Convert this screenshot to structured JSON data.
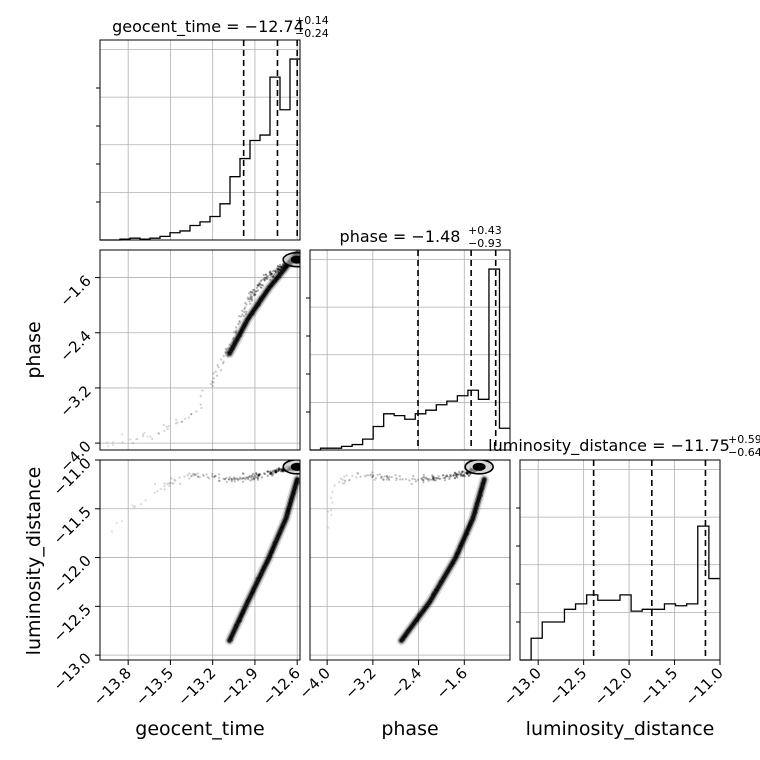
{
  "chart_data": {
    "type": "corner",
    "parameters": [
      "geocent_time",
      "phase",
      "luminosity_distance"
    ],
    "panels": {
      "geocent_time": {
        "title_value": "−12.74",
        "title_plus": "+0.14",
        "title_minus": "−0.24",
        "xlim": [
          -14.0,
          -12.58
        ],
        "quantiles": [
          -12.98,
          -12.74,
          -12.6
        ],
        "hist": [
          0.0,
          0.0,
          0.005,
          0.01,
          0.005,
          0.01,
          0.02,
          0.04,
          0.05,
          0.08,
          0.1,
          0.13,
          0.2,
          0.35,
          0.45,
          0.55,
          0.58,
          0.9,
          0.72,
          1.0
        ]
      },
      "phase": {
        "title_value": "−1.48",
        "title_plus": "+0.43",
        "title_minus": "−0.93",
        "xlim": [
          -4.3,
          -0.8
        ],
        "quantiles": [
          -2.41,
          -1.48,
          -1.05
        ],
        "hist": [
          0.0,
          0.01,
          0.01,
          0.02,
          0.03,
          0.06,
          0.13,
          0.2,
          0.19,
          0.17,
          0.2,
          0.22,
          0.25,
          0.27,
          0.3,
          0.33,
          0.28,
          1.0,
          0.12
        ]
      },
      "luminosity_distance": {
        "title_value": "−11.75",
        "title_plus": "+0.59",
        "title_minus": "−0.64",
        "xlim": [
          -13.2,
          -11.0
        ],
        "quantiles": [
          -12.39,
          -11.75,
          -11.16
        ],
        "hist": [
          0.0,
          0.12,
          0.21,
          0.21,
          0.28,
          0.31,
          0.36,
          0.33,
          0.33,
          0.36,
          0.27,
          0.28,
          0.28,
          0.31,
          0.3,
          0.31,
          0.74,
          0.45
        ]
      }
    },
    "axes": {
      "geocent_time": {
        "ticks": [
          -13.8,
          -13.5,
          -13.2,
          -12.9,
          -12.6
        ],
        "tick_labels": [
          "−13.8",
          "−13.5",
          "−13.2",
          "−12.9",
          "−12.6"
        ]
      },
      "phase": {
        "ylim": [
          -4.1,
          -1.2
        ],
        "ticks": [
          -4.0,
          -3.2,
          -2.4,
          -1.6
        ],
        "tick_labels": [
          "−4.0",
          "−3.2",
          "−2.4",
          "−1.6"
        ]
      },
      "luminosity_distance": {
        "ylim": [
          -13.05,
          -11.0
        ],
        "ticks": [
          -13.0,
          -12.5,
          -12.0,
          -11.5,
          -11.0
        ],
        "tick_labels": [
          "−13.0",
          "−12.5",
          "−12.0",
          "−11.5",
          "−11.0"
        ]
      }
    },
    "grid": true,
    "trajectory": {
      "geocent_time": [
        -13.95,
        -13.6,
        -13.35,
        -13.2,
        -13.05,
        -12.95,
        -12.85,
        -12.75,
        -12.68,
        -12.62,
        -12.58
      ],
      "phase": [
        -4.0,
        -3.85,
        -3.6,
        -3.1,
        -2.45,
        -1.95,
        -1.65,
        -1.5,
        -1.42,
        -1.36,
        -1.32
      ],
      "luminosity_distance": [
        -11.75,
        -11.3,
        -11.15,
        -11.17,
        -11.2,
        -11.18,
        -11.15,
        -11.12,
        -11.1,
        -11.08,
        -11.06
      ]
    },
    "branch": {
      "geocent_time": [
        -13.08,
        -12.95,
        -12.8,
        -12.68,
        -12.6
      ],
      "phase": [
        -2.7,
        -2.2,
        -1.75,
        -1.45,
        -1.25
      ],
      "luminosity_distance": [
        -12.85,
        -12.45,
        -12.0,
        -11.6,
        -11.2
      ]
    }
  }
}
